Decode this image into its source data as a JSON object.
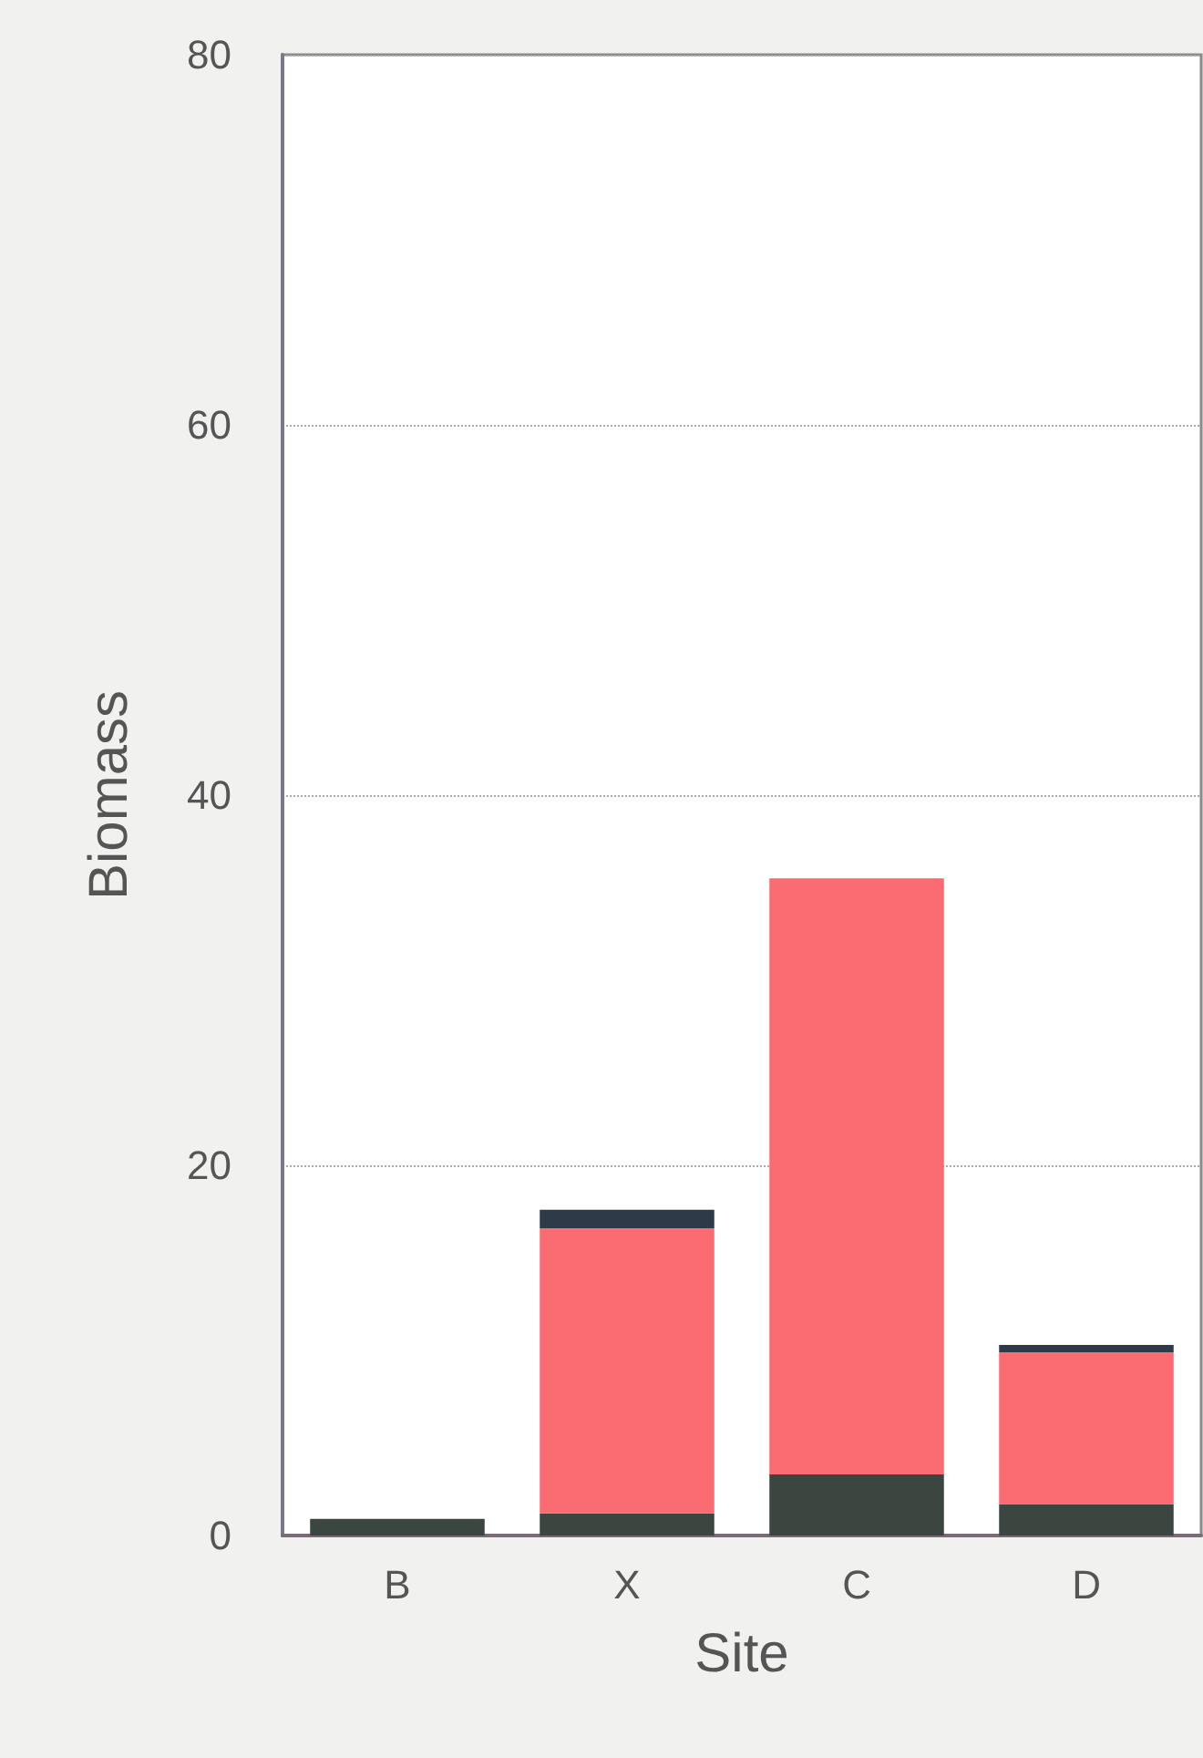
{
  "chart_data": {
    "type": "bar",
    "stacked": true,
    "xlabel": "Site",
    "ylabel": "Biomass",
    "categories": [
      "B",
      "X",
      "C",
      "D"
    ],
    "series": [
      {
        "color": "#3b4640",
        "values": [
          0.9,
          1.2,
          3.3,
          1.7
        ]
      },
      {
        "color": "#fa6b72",
        "values": [
          0,
          15.4,
          32.2,
          8.2
        ]
      },
      {
        "color": "#2e3a48",
        "values": [
          0,
          1.0,
          0,
          0.4
        ]
      }
    ],
    "ylim": [
      0,
      80
    ],
    "yticks": [
      0,
      20,
      40,
      60,
      80
    ],
    "grid": "y"
  }
}
